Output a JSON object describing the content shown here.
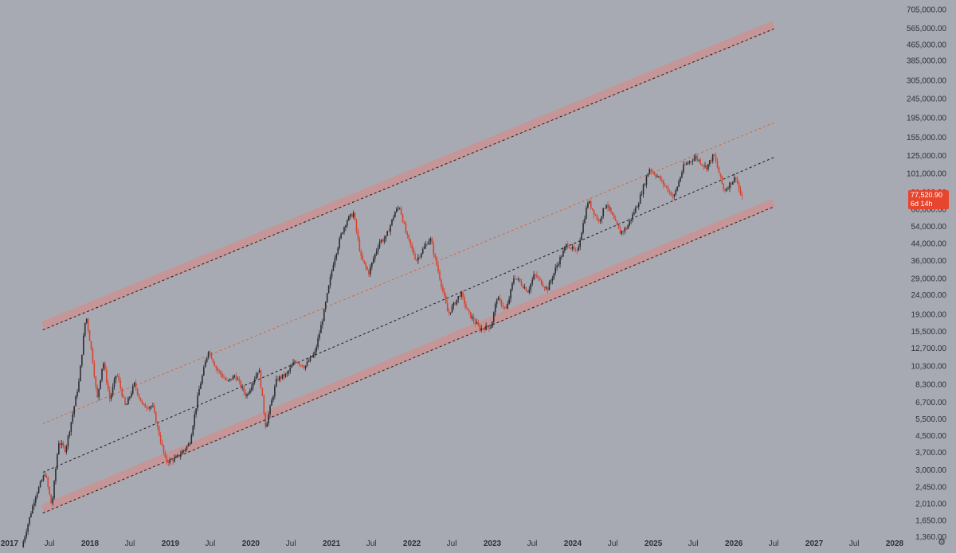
{
  "chart_data": {
    "type": "candlestick",
    "title": "",
    "xlabel": "",
    "ylabel": "",
    "y_scale": "log",
    "x_range": [
      "2017-01-01",
      "2028-01-01"
    ],
    "y_range": [
      1280,
      760000
    ],
    "y_ticks": [
      705000,
      565000,
      465000,
      385000,
      305000,
      245000,
      195000,
      155000,
      125000,
      101000,
      81000,
      66000,
      54000,
      44000,
      36000,
      29000,
      24000,
      19000,
      15500,
      12700,
      10300,
      8300,
      6700,
      5500,
      4500,
      3700,
      3000,
      2450,
      2010,
      1650,
      1360
    ],
    "y_tick_labels": [
      "705,000.00",
      "565,000.00",
      "465,000.00",
      "385,000.00",
      "305,000.00",
      "245,000.00",
      "195,000.00",
      "155,000.00",
      "125,000.00",
      "101,000.00",
      "81,000.00",
      "66,000.00",
      "54,000.00",
      "44,000.00",
      "36,000.00",
      "29,000.00",
      "24,000.00",
      "19,000.00",
      "15,500.00",
      "12,700.00",
      "10,300.00",
      "8,300.00",
      "6,700.00",
      "5,500.00",
      "4,500.00",
      "3,700.00",
      "3,000.00",
      "2,450.00",
      "2,010.00",
      "1,650.00",
      "1,360.00"
    ],
    "x_ticks": [
      {
        "date": "2017-01-01",
        "label": "2017",
        "year": true
      },
      {
        "date": "2017-07-01",
        "label": "Jul",
        "year": false
      },
      {
        "date": "2018-01-01",
        "label": "2018",
        "year": true
      },
      {
        "date": "2018-07-01",
        "label": "Jul",
        "year": false
      },
      {
        "date": "2019-01-01",
        "label": "2019",
        "year": true
      },
      {
        "date": "2019-07-01",
        "label": "Jul",
        "year": false
      },
      {
        "date": "2020-01-01",
        "label": "2020",
        "year": true
      },
      {
        "date": "2020-07-01",
        "label": "Jul",
        "year": false
      },
      {
        "date": "2021-01-01",
        "label": "2021",
        "year": true
      },
      {
        "date": "2021-07-01",
        "label": "Jul",
        "year": false
      },
      {
        "date": "2022-01-01",
        "label": "2022",
        "year": true
      },
      {
        "date": "2022-07-01",
        "label": "Jul",
        "year": false
      },
      {
        "date": "2023-01-01",
        "label": "2023",
        "year": true
      },
      {
        "date": "2023-07-01",
        "label": "Jul",
        "year": false
      },
      {
        "date": "2024-01-01",
        "label": "2024",
        "year": true
      },
      {
        "date": "2024-07-01",
        "label": "Jul",
        "year": false
      },
      {
        "date": "2025-01-01",
        "label": "2025",
        "year": true
      },
      {
        "date": "2025-07-01",
        "label": "Jul",
        "year": false
      },
      {
        "date": "2026-01-01",
        "label": "2026",
        "year": true
      },
      {
        "date": "2026-07-01",
        "label": "Jul",
        "year": false
      },
      {
        "date": "2027-01-01",
        "label": "2027",
        "year": true
      },
      {
        "date": "2027-07-01",
        "label": "Jul",
        "year": false
      },
      {
        "date": "2028-01-01",
        "label": "2028",
        "year": true
      }
    ],
    "price_path": [
      [
        "2017-03-01",
        1200
      ],
      [
        "2017-05-01",
        2200
      ],
      [
        "2017-06-15",
        2900
      ],
      [
        "2017-07-15",
        1950
      ],
      [
        "2017-08-15",
        4200
      ],
      [
        "2017-09-15",
        3800
      ],
      [
        "2017-10-15",
        5600
      ],
      [
        "2017-11-15",
        8500
      ],
      [
        "2017-12-17",
        19000
      ],
      [
        "2018-01-15",
        11500
      ],
      [
        "2018-02-06",
        6900
      ],
      [
        "2018-03-05",
        11000
      ],
      [
        "2018-04-05",
        6900
      ],
      [
        "2018-05-05",
        9500
      ],
      [
        "2018-06-15",
        6300
      ],
      [
        "2018-07-25",
        8300
      ],
      [
        "2018-09-01",
        6400
      ],
      [
        "2018-10-15",
        6400
      ],
      [
        "2018-11-20",
        4300
      ],
      [
        "2018-12-15",
        3300
      ],
      [
        "2019-02-01",
        3450
      ],
      [
        "2019-04-01",
        4100
      ],
      [
        "2019-05-15",
        7800
      ],
      [
        "2019-06-26",
        12500
      ],
      [
        "2019-08-01",
        10000
      ],
      [
        "2019-09-20",
        8500
      ],
      [
        "2019-10-25",
        9200
      ],
      [
        "2019-12-15",
        7200
      ],
      [
        "2020-02-10",
        10000
      ],
      [
        "2020-03-12",
        5000
      ],
      [
        "2020-05-01",
        8800
      ],
      [
        "2020-06-15",
        9300
      ],
      [
        "2020-07-25",
        11000
      ],
      [
        "2020-09-05",
        10200
      ],
      [
        "2020-10-21",
        12000
      ],
      [
        "2020-11-30",
        19000
      ],
      [
        "2020-12-30",
        29000
      ],
      [
        "2021-01-15",
        36000
      ],
      [
        "2021-02-20",
        50000
      ],
      [
        "2021-03-15",
        58000
      ],
      [
        "2021-04-14",
        63000
      ],
      [
        "2021-05-19",
        37000
      ],
      [
        "2021-06-22",
        31000
      ],
      [
        "2021-08-10",
        45000
      ],
      [
        "2021-09-08",
        47000
      ],
      [
        "2021-10-20",
        64000
      ],
      [
        "2021-11-10",
        68000
      ],
      [
        "2021-12-10",
        49000
      ],
      [
        "2022-01-24",
        36000
      ],
      [
        "2022-03-28",
        47000
      ],
      [
        "2022-05-12",
        29000
      ],
      [
        "2022-06-18",
        19000
      ],
      [
        "2022-08-14",
        24500
      ],
      [
        "2022-09-15",
        19500
      ],
      [
        "2022-11-09",
        16000
      ],
      [
        "2022-12-30",
        16500
      ],
      [
        "2023-01-25",
        23000
      ],
      [
        "2023-03-10",
        20000
      ],
      [
        "2023-04-14",
        30000
      ],
      [
        "2023-06-15",
        25000
      ],
      [
        "2023-07-15",
        30500
      ],
      [
        "2023-09-11",
        25500
      ],
      [
        "2023-10-25",
        34000
      ],
      [
        "2023-12-10",
        44000
      ],
      [
        "2024-01-23",
        39000
      ],
      [
        "2024-03-14",
        73000
      ],
      [
        "2024-05-01",
        57000
      ],
      [
        "2024-06-05",
        71000
      ],
      [
        "2024-08-05",
        50000
      ],
      [
        "2024-09-06",
        53000
      ],
      [
        "2024-10-29",
        72000
      ],
      [
        "2024-12-17",
        107000
      ],
      [
        "2025-02-01",
        95000
      ],
      [
        "2025-04-07",
        76000
      ],
      [
        "2025-05-22",
        110000
      ],
      [
        "2025-07-14",
        123000
      ],
      [
        "2025-09-01",
        108000
      ],
      [
        "2025-10-06",
        126000
      ],
      [
        "2025-11-21",
        82000
      ],
      [
        "2026-01-14",
        97000
      ],
      [
        "2026-02-05",
        77520.9
      ]
    ],
    "last_price": {
      "value": "77,520.90",
      "countdown": "6d 14h",
      "color": "#e8452e"
    },
    "colors": {
      "up": "#2b2d33",
      "down": "#d8432f",
      "channel_band": "#c79495",
      "dash_black": "#1d1d1d",
      "dash_orange": "#cc6a43"
    },
    "channel_lines": [
      {
        "name": "upper",
        "style": "band_dashed",
        "p1": [
          "2017-06-01",
          15800
        ],
        "p2": [
          "2026-07-01",
          560000
        ]
      },
      {
        "name": "middle_upper",
        "style": "dashed_orange",
        "p1": [
          "2017-06-01",
          5200
        ],
        "p2": [
          "2026-07-01",
          184000
        ]
      },
      {
        "name": "middle",
        "style": "dashed_black",
        "p1": [
          "2017-06-01",
          2920
        ],
        "p2": [
          "2026-07-01",
          122000
        ]
      },
      {
        "name": "lower",
        "style": "band_dashed",
        "p1": [
          "2017-06-01",
          1800
        ],
        "p2": [
          "2026-07-01",
          68000
        ]
      }
    ],
    "grid": false,
    "legend": "none"
  },
  "ui": {
    "settings_icon": "gear-icon",
    "background": "#a8aab3"
  }
}
